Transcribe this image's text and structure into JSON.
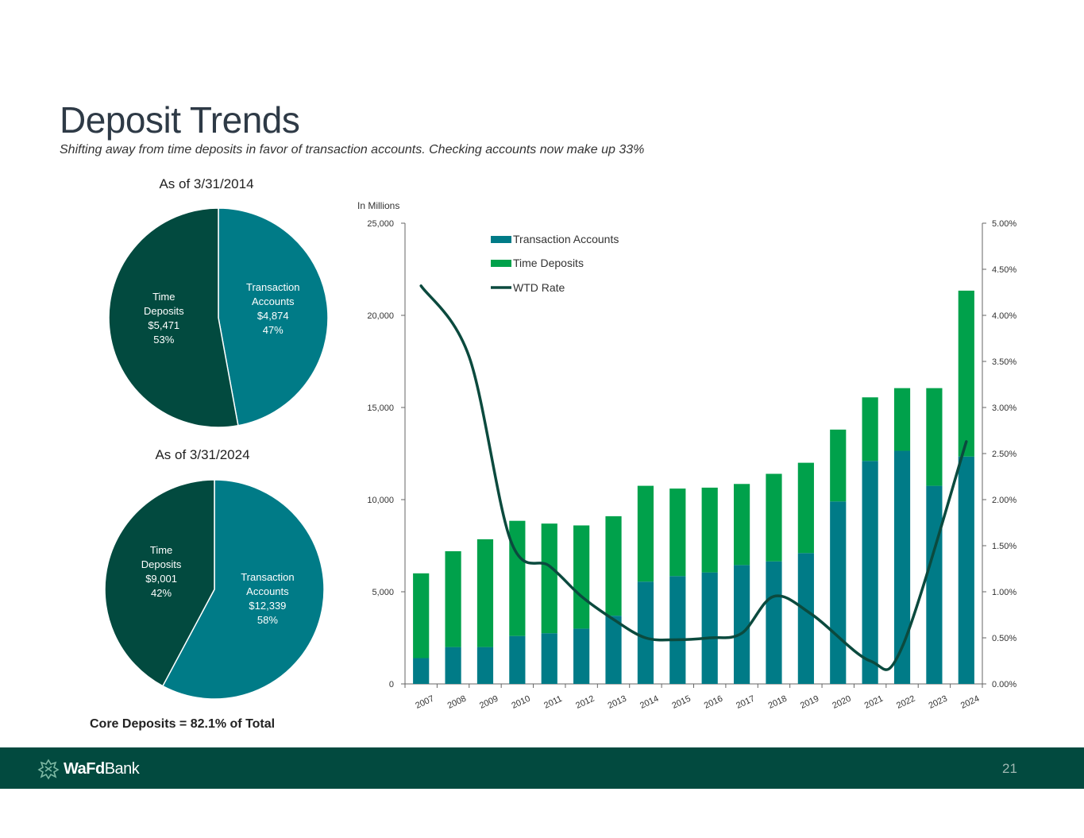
{
  "slide": {
    "title": "Deposit Trends",
    "subtitle": "Shifting away from time deposits in favor of transaction accounts.  Checking accounts now make up 33%",
    "core_deposits": "Core Deposits = 82.1% of Total",
    "page_number": "21"
  },
  "footer": {
    "logo_bold": "WaFd",
    "logo_light": "Bank"
  },
  "colors": {
    "transaction": "#007b87",
    "time": "#00a14b",
    "time_pie": "#024a3f",
    "wtd": "#0b4a3e",
    "footer": "#024a3f"
  },
  "chart_data": [
    {
      "type": "pie",
      "title": "As of 3/31/2014",
      "slices": [
        {
          "label_line1": "Transaction",
          "label_line2": "Accounts",
          "amount": "$4,874",
          "pct_label": "47%",
          "value": 4874,
          "percent": 47
        },
        {
          "label_line1": "Time",
          "label_line2": "Deposits",
          "amount": "$5,471",
          "pct_label": "53%",
          "value": 5471,
          "percent": 53
        }
      ]
    },
    {
      "type": "pie",
      "title": "As of 3/31/2024",
      "slices": [
        {
          "label_line1": "Transaction",
          "label_line2": "Accounts",
          "amount": "$12,339",
          "pct_label": "58%",
          "value": 12339,
          "percent": 58
        },
        {
          "label_line1": "Time",
          "label_line2": "Deposits",
          "amount": "$9,001",
          "pct_label": "42%",
          "value": 9001,
          "percent": 42
        }
      ]
    },
    {
      "type": "bar",
      "stacked": true,
      "units_label": "In Millions",
      "categories": [
        "2007",
        "2008",
        "2009",
        "2010",
        "2011",
        "2012",
        "2013",
        "2014",
        "2015",
        "2016",
        "2017",
        "2018",
        "2019",
        "2020",
        "2021",
        "2022",
        "2023",
        "2024"
      ],
      "series": [
        {
          "name": "Transaction Accounts",
          "values": [
            1400,
            2000,
            2000,
            2600,
            2750,
            3000,
            3700,
            5550,
            5850,
            6050,
            6450,
            6650,
            7100,
            9900,
            12100,
            12650,
            10750,
            12339
          ]
        },
        {
          "name": "Time Deposits",
          "values": [
            4600,
            5200,
            5850,
            6250,
            5950,
            5600,
            5400,
            5200,
            4750,
            4600,
            4400,
            4750,
            4900,
            3900,
            3450,
            3400,
            5300,
            9001
          ]
        }
      ],
      "line_series": {
        "name": "WTD Rate",
        "axis": "right",
        "values": [
          4.32,
          3.55,
          1.55,
          1.28,
          0.95,
          0.7,
          0.5,
          0.48,
          0.5,
          0.55,
          0.95,
          0.75,
          0.25,
          0.4,
          2.63
        ],
        "x_positions": [
          2007,
          2008.5,
          2009.8,
          2011,
          2012,
          2013,
          2014,
          2015,
          2016,
          2017,
          2018,
          2019.2,
          2021,
          2022,
          2024
        ]
      },
      "ylim": [
        0,
        25000
      ],
      "y_ticks": [
        "0",
        "5,000",
        "10,000",
        "15,000",
        "20,000",
        "25,000"
      ],
      "y_tick_values": [
        0,
        5000,
        10000,
        15000,
        20000,
        25000
      ],
      "y2lim": [
        0,
        5.0
      ],
      "y2_ticks": [
        "0.00%",
        "0.50%",
        "1.00%",
        "1.50%",
        "2.00%",
        "2.50%",
        "3.00%",
        "3.50%",
        "4.00%",
        "4.50%",
        "5.00%"
      ],
      "legend": [
        "Transaction Accounts",
        "Time Deposits",
        "WTD Rate"
      ],
      "legend_position": "top-left"
    }
  ]
}
